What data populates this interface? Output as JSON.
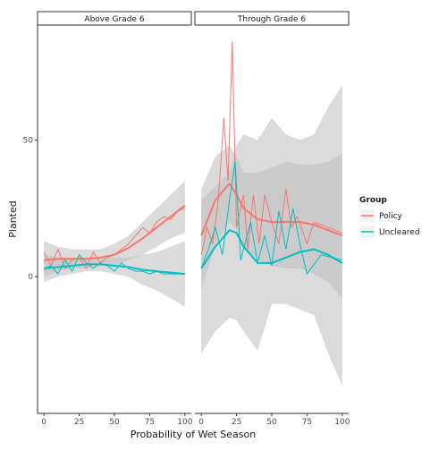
{
  "chart_data": {
    "type": "line",
    "xlabel": "Probability of Wet Season",
    "ylabel": "Planted",
    "ylim": [
      -50,
      92
    ],
    "yticks": [
      0,
      50
    ],
    "grid": false,
    "legend": {
      "title": "Group",
      "placement": "right",
      "entries": [
        {
          "name": "Policy",
          "color": "#F8766D"
        },
        {
          "name": "Uncleared",
          "color": "#00BFC4"
        }
      ]
    },
    "colors": {
      "policy": "#F8766D",
      "uncleared": "#00BFC4",
      "band": "#bdbdbd"
    },
    "panels": [
      {
        "strip": "Above Grade 6",
        "xlim": [
          -2,
          102
        ],
        "xticks": [
          0,
          25,
          50,
          75,
          100
        ],
        "xtick_labels": [
          "0",
          "25",
          "50",
          "75",
          "100"
        ],
        "series": [
          {
            "name": "Policy",
            "raw_x": [
              0,
              5,
              10,
              15,
              20,
              25,
              30,
              35,
              40,
              45,
              50,
              55,
              60,
              65,
              70,
              75,
              80,
              85,
              90,
              95,
              100
            ],
            "raw_y": [
              9,
              4,
              10,
              3,
              6,
              7,
              3,
              9,
              5,
              7,
              8,
              10,
              12,
              15,
              18,
              16,
              20,
              22,
              21,
              24,
              25
            ],
            "smooth_x": [
              0,
              10,
              20,
              30,
              40,
              50,
              60,
              70,
              80,
              90,
              100
            ],
            "smooth_y": [
              6,
              6.5,
              6.5,
              6.5,
              7,
              8,
              10.5,
              14,
              18,
              22,
              26
            ],
            "band_lo": [
              0,
              2,
              3,
              3,
              4,
              4,
              6,
              8,
              11,
              14,
              16
            ],
            "band_hi": [
              13,
              11,
              10,
              10,
              10,
              12,
              15,
              20,
              25,
              30,
              35
            ]
          },
          {
            "name": "Uncleared",
            "raw_x": [
              0,
              5,
              10,
              15,
              20,
              25,
              30,
              35,
              40,
              45,
              50,
              55,
              60,
              65,
              70,
              75,
              80,
              85,
              90,
              95,
              100
            ],
            "raw_y": [
              3,
              4,
              1,
              6,
              2,
              8,
              5,
              3,
              5,
              4,
              2,
              5,
              3,
              2,
              2,
              1,
              2,
              1,
              1,
              1,
              1
            ],
            "smooth_x": [
              0,
              10,
              20,
              30,
              40,
              50,
              60,
              70,
              80,
              90,
              100
            ],
            "smooth_y": [
              3,
              3.5,
              4,
              4.5,
              4.5,
              4,
              3.5,
              2.5,
              2,
              1.5,
              1
            ],
            "band_lo": [
              -2,
              0,
              1,
              2,
              2,
              1,
              0,
              -3,
              -5,
              -8,
              -11
            ],
            "band_hi": [
              8,
              7,
              7,
              7,
              7,
              7,
              7,
              8,
              9,
              11,
              13
            ]
          }
        ]
      },
      {
        "strip": "Through Grade 6",
        "xlim": [
          -2,
          102
        ],
        "xticks": [
          0,
          25,
          50,
          75,
          100
        ],
        "xtick_labels": [
          "0",
          "25",
          "50",
          "75",
          "100"
        ],
        "series": [
          {
            "name": "Policy",
            "raw_x": [
              0,
              4,
              8,
              12,
              16,
              19,
              22,
              25,
              30,
              33,
              37,
              41,
              45,
              50,
              55,
              60,
              64,
              68,
              75,
              80,
              90,
              100
            ],
            "raw_y": [
              8,
              18,
              12,
              28,
              58,
              35,
              86,
              18,
              30,
              10,
              30,
              12,
              30,
              20,
              12,
              32,
              18,
              22,
              12,
              20,
              18,
              16
            ],
            "smooth_x": [
              0,
              10,
              20,
              25,
              30,
              40,
              50,
              60,
              70,
              80,
              90,
              100
            ],
            "smooth_y": [
              15,
              28,
              34,
              30,
              25,
              21,
              20,
              20,
              20,
              19,
              17,
              15
            ],
            "band_lo": [
              -5,
              12,
              20,
              17,
              11,
              6,
              4,
              3,
              3,
              1,
              -2,
              -8
            ],
            "band_hi": [
              32,
              44,
              48,
              44,
              38,
              38,
              40,
              42,
              41,
              41,
              42,
              45
            ]
          },
          {
            "name": "Uncleared",
            "raw_x": [
              0,
              5,
              10,
              15,
              20,
              24,
              28,
              35,
              40,
              45,
              50,
              55,
              60,
              65,
              70,
              75,
              85,
              100
            ],
            "raw_y": [
              3,
              10,
              18,
              8,
              28,
              42,
              6,
              20,
              5,
              15,
              4,
              24,
              10,
              25,
              12,
              1,
              8,
              6
            ],
            "smooth_x": [
              0,
              10,
              20,
              25,
              30,
              40,
              50,
              60,
              70,
              80,
              90,
              100
            ],
            "smooth_y": [
              3,
              11,
              17,
              16,
              11,
              5,
              5,
              7,
              9,
              10,
              8,
              5
            ],
            "band_lo": [
              -28,
              -20,
              -15,
              -16,
              -20,
              -27,
              -10,
              -10,
              -12,
              -14,
              -28,
              -40
            ],
            "band_hi": [
              28,
              33,
              38,
              48,
              52,
              50,
              58,
              52,
              50,
              52,
              62,
              70
            ]
          }
        ]
      }
    ]
  }
}
